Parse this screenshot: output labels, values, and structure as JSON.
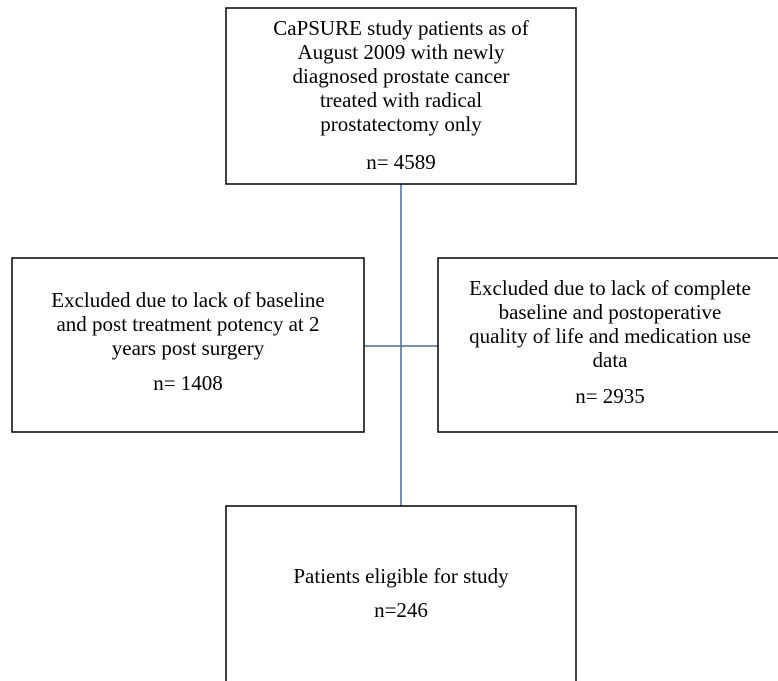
{
  "nodes": [
    {
      "lines": [
        "CaPSURE study patients as of",
        "August 2009 with newly",
        "diagnosed prostate cancer",
        "treated with radical",
        "prostatectomy only"
      ],
      "count": "n= 4589"
    },
    {
      "lines": [
        "Excluded due to lack of  baseline",
        "and post treatment potency at 2",
        "years post surgery"
      ],
      "count": "n= 1408"
    },
    {
      "lines": [
        "Excluded due to lack of complete",
        "baseline and postoperative",
        "quality of life and medication use",
        "data"
      ],
      "count": "n= 2935"
    },
    {
      "lines": [
        "Patients eligible for study"
      ],
      "count": "n=246"
    }
  ]
}
